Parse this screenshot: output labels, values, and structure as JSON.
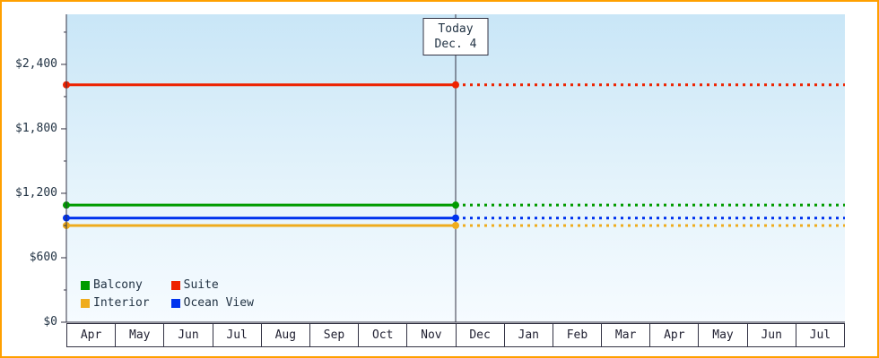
{
  "frame": {
    "border_color": "#ffa000",
    "background_color": "#ffffff",
    "plot_gradient_top": "#c9e6f7",
    "plot_gradient_bottom": "#f6fbff",
    "axis_color": "#333344"
  },
  "chart_data": {
    "type": "line",
    "title": "",
    "description": "Cruise cabin price history: flat price lines per cabin category, solid before today, dotted projection after today",
    "x_axis": {
      "months": [
        "Apr",
        "May",
        "Jun",
        "Jul",
        "Aug",
        "Sep",
        "Oct",
        "Nov",
        "Dec",
        "Jan",
        "Feb",
        "Mar",
        "Apr",
        "May",
        "Jun",
        "Jul"
      ]
    },
    "y_axis": {
      "tick_labels": [
        "$2,400",
        "$1,800",
        "$1,200",
        "$600",
        "$0"
      ],
      "tick_values": [
        2400,
        1800,
        1200,
        600,
        0
      ],
      "minor_tick_values": [
        2700,
        2100,
        1500,
        900,
        300
      ],
      "max": 2866,
      "min": 0
    },
    "today_marker": {
      "line1": "Today",
      "line2": "Dec. 4",
      "x_fraction": 0.5
    },
    "series": [
      {
        "name": "Suite",
        "color": "#ee2200",
        "value": 2210,
        "style_before_today": "solid",
        "style_after_today": "dotted"
      },
      {
        "name": "Balcony",
        "color": "#009b00",
        "value": 1090,
        "style_before_today": "solid",
        "style_after_today": "dotted"
      },
      {
        "name": "Ocean View",
        "color": "#0033ee",
        "value": 970,
        "style_before_today": "solid",
        "style_after_today": "dotted"
      },
      {
        "name": "Interior",
        "color": "#efac1d",
        "value": 900,
        "style_before_today": "solid",
        "style_after_today": "dotted"
      }
    ],
    "legend": {
      "position": "bottom-left",
      "items": [
        {
          "label": "Balcony",
          "color": "#009b00"
        },
        {
          "label": "Suite",
          "color": "#ee2200"
        },
        {
          "label": "Interior",
          "color": "#efac1d"
        },
        {
          "label": "Ocean View",
          "color": "#0033ee"
        }
      ]
    }
  }
}
